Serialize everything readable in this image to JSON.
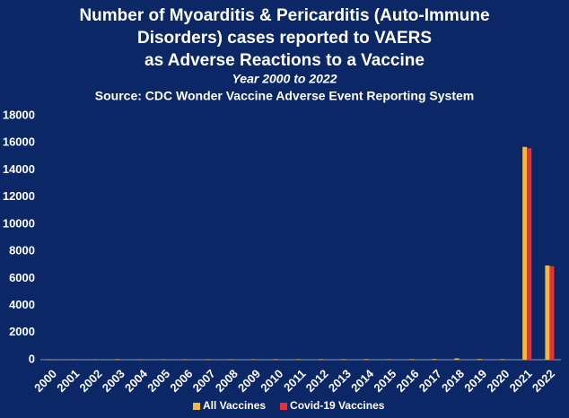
{
  "chart_data": {
    "type": "bar",
    "title": [
      "Number of Myoarditis & Pericarditis (Auto-Immune",
      "Disorders) cases reported to VAERS",
      "as Adverse Reactions to a Vaccine"
    ],
    "subtitle": "Year 2000 to 2022",
    "source": "Source: CDC Wonder Vaccine Adverse Event Reporting System",
    "categories": [
      "2000",
      "2001",
      "2002",
      "2003",
      "2004",
      "2005",
      "2006",
      "2007",
      "2008",
      "2009",
      "2010",
      "2011",
      "2012",
      "2013",
      "2014",
      "2015",
      "2016",
      "2017",
      "2018",
      "2019",
      "2020",
      "2021",
      "2022"
    ],
    "series": [
      {
        "name": "All Vaccines",
        "color": "#f5b841",
        "values": [
          20,
          15,
          20,
          40,
          20,
          25,
          25,
          30,
          30,
          35,
          40,
          35,
          40,
          40,
          45,
          35,
          40,
          50,
          100,
          50,
          40,
          15700,
          6950
        ]
      },
      {
        "name": "Covid-19 Vaccines",
        "color": "#e8323a",
        "values": [
          null,
          null,
          null,
          null,
          null,
          null,
          null,
          null,
          null,
          null,
          null,
          null,
          null,
          null,
          null,
          null,
          null,
          null,
          null,
          null,
          0,
          15600,
          6900
        ]
      }
    ],
    "ylim": [
      0,
      18000
    ],
    "yticks": [
      0,
      2000,
      4000,
      6000,
      8000,
      10000,
      12000,
      14000,
      16000,
      18000
    ],
    "grid": false,
    "legend": "bottom"
  }
}
